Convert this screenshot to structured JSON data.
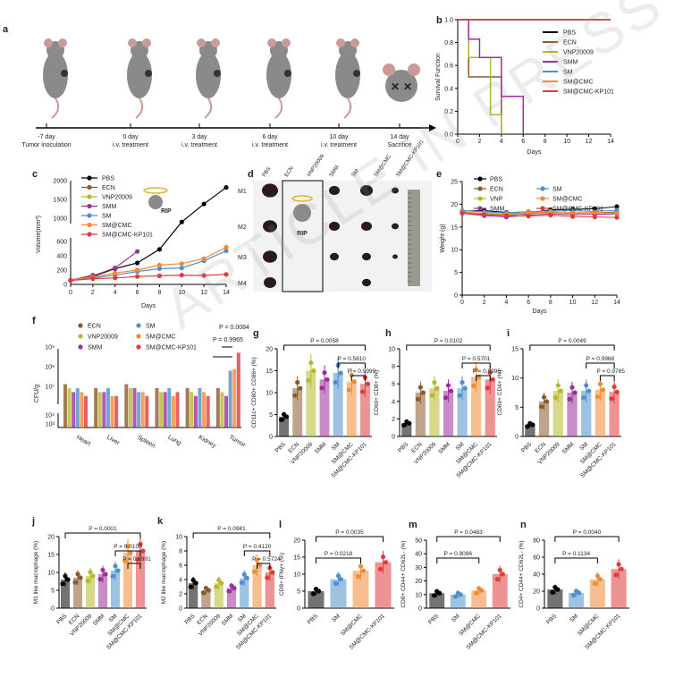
{
  "watermark": "ARTICLE IN PRESS",
  "colors": {
    "PBS": "#000000",
    "ECN": "#8b5a2b",
    "VNP20009": "#b5b82a",
    "SMM": "#9b2f9b",
    "SM": "#4f8fcb",
    "SM@CMC": "#f08a35",
    "SM@CMC-KP101": "#e03a3a"
  },
  "panel_a": {
    "label": "a",
    "timeline": [
      {
        "day": "-7 day",
        "event": "Tumor inoculation"
      },
      {
        "day": "0 day",
        "event": "i.v. treatment"
      },
      {
        "day": "3 day",
        "event": "i.v. treatment"
      },
      {
        "day": "6 day",
        "event": "i.v. treatment"
      },
      {
        "day": "10 day",
        "event": "i.v. treatment"
      },
      {
        "day": "14 day",
        "event": "Sacrifice"
      }
    ]
  },
  "panel_d": {
    "label": "d",
    "groups": [
      "PBS",
      "ECN",
      "VNP20009",
      "SMM",
      "SM",
      "SM@CMC",
      "SM@CMC-KP101"
    ],
    "rows": [
      "M1",
      "M2",
      "M3",
      "M4"
    ],
    "rip": "RIP"
  },
  "chart_data": [
    {
      "id": "b",
      "type": "line",
      "title": "",
      "xlabel": "Days",
      "ylabel": "Survival Function",
      "xlim": [
        0,
        14
      ],
      "ylim": [
        0,
        1.0
      ],
      "xticks": [
        "0",
        "2",
        "4",
        "6",
        "8",
        "10",
        "12",
        "14"
      ],
      "yticks": [
        "0.0",
        "0.2",
        "0.4",
        "0.6",
        "0.8",
        "1.0"
      ],
      "legend": [
        "PBS",
        "ECN",
        "VNP20009",
        "SMM",
        "SM",
        "SM@CMC",
        "SM@CMC-KP101"
      ],
      "series": [
        {
          "name": "PBS",
          "x": [
            0,
            14
          ],
          "y": [
            1,
            1
          ]
        },
        {
          "name": "ECN",
          "x": [
            0,
            1,
            2,
            4
          ],
          "y": [
            1,
            0.5,
            0.5,
            0
          ]
        },
        {
          "name": "VNP20009",
          "x": [
            0,
            1,
            2,
            3,
            4
          ],
          "y": [
            1,
            0.67,
            0.67,
            0.17,
            0
          ]
        },
        {
          "name": "SMM",
          "x": [
            0,
            1,
            2,
            4,
            6
          ],
          "y": [
            1,
            0.83,
            0.67,
            0.33,
            0
          ]
        },
        {
          "name": "SM",
          "x": [
            0,
            14
          ],
          "y": [
            1,
            1
          ]
        },
        {
          "name": "SM@CMC",
          "x": [
            0,
            14
          ],
          "y": [
            1,
            1
          ]
        },
        {
          "name": "SM@CMC-KP101",
          "x": [
            0,
            14
          ],
          "y": [
            1,
            1
          ]
        }
      ]
    },
    {
      "id": "c",
      "type": "line",
      "xlabel": "Days",
      "ylabel": "Volume(mm³)",
      "xticks": [
        "0",
        "2",
        "4",
        "6",
        "8",
        "10",
        "12",
        "14"
      ],
      "yticks_low": [
        "0",
        "200",
        "400",
        "600"
      ],
      "yticks_high": [
        "1000",
        "1500",
        "2000"
      ],
      "legend": [
        "PBS",
        "ECN",
        "VNP20009",
        "SMM",
        "SM",
        "SM@CMC",
        "SM@CMC-KP101"
      ],
      "rip": "RIP",
      "series": [
        {
          "name": "PBS",
          "x": [
            0,
            2,
            4,
            6,
            8,
            10,
            12,
            14
          ],
          "y": [
            60,
            110,
            220,
            300,
            490,
            900,
            1380,
            1820
          ]
        },
        {
          "name": "ECN",
          "x": [
            0,
            2
          ],
          "y": [
            55,
            130
          ]
        },
        {
          "name": "VNP20009",
          "x": [
            0,
            2
          ],
          "y": [
            55,
            120
          ]
        },
        {
          "name": "SMM",
          "x": [
            0,
            2,
            4,
            6
          ],
          "y": [
            60,
            120,
            230,
            460
          ]
        },
        {
          "name": "SM",
          "x": [
            0,
            2,
            4,
            6,
            8,
            10,
            12,
            14
          ],
          "y": [
            60,
            90,
            130,
            180,
            220,
            230,
            330,
            470
          ]
        },
        {
          "name": "SM@CMC",
          "x": [
            0,
            2,
            4,
            6,
            8,
            10,
            12,
            14
          ],
          "y": [
            60,
            100,
            160,
            200,
            270,
            290,
            360,
            520
          ]
        },
        {
          "name": "SM@CMC-KP101",
          "x": [
            0,
            2,
            4,
            6,
            8,
            10,
            12,
            14
          ],
          "y": [
            55,
            80,
            90,
            110,
            120,
            130,
            125,
            140
          ]
        }
      ]
    },
    {
      "id": "e",
      "type": "line",
      "xlabel": "Days",
      "ylabel": "Weight (g)",
      "xlim": [
        0,
        14
      ],
      "ylim": [
        0,
        25
      ],
      "xticks": [
        "0",
        "2",
        "4",
        "6",
        "8",
        "10",
        "12",
        "14"
      ],
      "yticks": [
        "0",
        "5",
        "10",
        "15",
        "20",
        "25"
      ],
      "legend": [
        "PBS",
        "ECN",
        "VNP",
        "SMM",
        "SM",
        "SM@CMC",
        "SM@CMC-KP101"
      ],
      "series": [
        {
          "name": "PBS",
          "x": [
            0,
            2,
            4,
            6,
            8,
            10,
            12,
            14
          ],
          "y": [
            18.5,
            18.6,
            18.2,
            18.0,
            18.8,
            18.9,
            19.0,
            19.5
          ]
        },
        {
          "name": "ECN",
          "x": [
            0,
            2,
            4,
            6,
            8,
            10,
            12,
            14
          ],
          "y": [
            18.0,
            17.8,
            17.6,
            17.9,
            18.2,
            18.0,
            18.1,
            18.3
          ]
        },
        {
          "name": "VNP",
          "x": [
            0,
            2,
            4,
            6,
            8,
            10,
            12,
            14
          ],
          "y": [
            18.2,
            18.0,
            17.8,
            18.1,
            18.0,
            18.2,
            18.0,
            18.1
          ]
        },
        {
          "name": "SMM",
          "x": [
            0,
            2,
            4,
            6,
            8,
            10,
            12,
            14
          ],
          "y": [
            18.0,
            17.5,
            17.2,
            17.6,
            17.9,
            17.7,
            17.8,
            17.9
          ]
        },
        {
          "name": "SM",
          "x": [
            0,
            2,
            4,
            6,
            8,
            10,
            12,
            14
          ],
          "y": [
            18.6,
            18.3,
            18.1,
            18.4,
            18.5,
            18.6,
            18.4,
            18.7
          ]
        },
        {
          "name": "SM@CMC",
          "x": [
            0,
            2,
            4,
            6,
            8,
            10,
            12,
            14
          ],
          "y": [
            18.3,
            18.0,
            17.9,
            18.2,
            18.3,
            18.1,
            18.2,
            18.0
          ]
        },
        {
          "name": "SM@CMC-KP101",
          "x": [
            0,
            2,
            4,
            6,
            8,
            10,
            12,
            14
          ],
          "y": [
            18.1,
            17.7,
            17.5,
            17.4,
            17.6,
            17.3,
            17.2,
            17.1
          ]
        }
      ]
    },
    {
      "id": "f",
      "type": "bar",
      "ylabel": "CFU/g",
      "categories": [
        "Heart",
        "Liver",
        "Spleen",
        "Lung",
        "Kidney",
        "Tumor"
      ],
      "yticks_low": [
        "10²",
        "10⁴"
      ],
      "yticks_high": [
        "10⁷",
        "10⁸",
        "10⁹"
      ],
      "legend": [
        "ECN",
        "VNP20009",
        "SMM",
        "SM",
        "SM@CMC",
        "SM@CMC-KP101"
      ],
      "annotations": [
        "P = 0.0084",
        "P = 0.9965"
      ],
      "series": [
        {
          "name": "ECN",
          "values": [
            0.55,
            0.5,
            0.55,
            0.5,
            0.5,
            0.5
          ]
        },
        {
          "name": "VNP20009",
          "values": [
            0.5,
            0.45,
            0.5,
            0.45,
            0.45,
            0.45
          ]
        },
        {
          "name": "SMM",
          "values": [
            0.45,
            0.45,
            0.5,
            0.45,
            0.4,
            0.4
          ]
        },
        {
          "name": "SM",
          "values": [
            0.5,
            0.5,
            0.45,
            0.5,
            0.5,
            0.72
          ]
        },
        {
          "name": "SM@CMC",
          "values": [
            0.45,
            0.4,
            0.45,
            0.4,
            0.45,
            0.74
          ]
        },
        {
          "name": "SM@CMC-KP101",
          "values": [
            0.4,
            0.4,
            0.4,
            0.45,
            0.4,
            0.95
          ]
        }
      ]
    },
    {
      "id": "g",
      "type": "bar",
      "ylabel": "CD11c+ CD80+ CD86+ (%)",
      "categories": [
        "PBS",
        "ECN",
        "VNP20009",
        "SMM",
        "SM",
        "SM@CMC",
        "SM@CMC-KP101"
      ],
      "ylim": [
        0,
        20
      ],
      "yticks": [
        "0",
        "5",
        "10",
        "15",
        "20"
      ],
      "values": [
        4.5,
        11.0,
        15.0,
        13.0,
        14.5,
        12.5,
        12.0
      ],
      "annotations": [
        "P = 0.0058",
        "P = 0.5810",
        "P = 0.9999"
      ]
    },
    {
      "id": "h",
      "type": "bar",
      "ylabel": "CD69+ CD8+ (%)",
      "categories": [
        "PBS",
        "ECN",
        "VNP20009",
        "SMM",
        "SM",
        "SM@CMC",
        "SM@CMC-KP101"
      ],
      "ylim": [
        0,
        10
      ],
      "yticks": [
        "0",
        "2",
        "4",
        "6",
        "8",
        "10"
      ],
      "values": [
        1.5,
        5.0,
        5.5,
        5.2,
        5.5,
        6.8,
        6.5
      ],
      "annotations": [
        "P = 0.0102",
        "P = 0.5701",
        "P = 0.9996"
      ]
    },
    {
      "id": "i",
      "type": "bar",
      "ylabel": "CD69+ CD4+ (%)",
      "categories": [
        "PBS",
        "ECN",
        "VNP20009",
        "SMM",
        "SM",
        "SM@CMC",
        "SM@CMC-KP101"
      ],
      "ylim": [
        0,
        15
      ],
      "yticks": [
        "0",
        "5",
        "10",
        "15"
      ],
      "values": [
        2.0,
        6.0,
        7.8,
        7.5,
        7.8,
        8.0,
        7.6
      ],
      "annotations": [
        "P = 0.0049",
        "P = 0.9968",
        "P = 0.9785"
      ]
    },
    {
      "id": "j",
      "type": "bar",
      "ylabel": "M1 like macrophage (%)",
      "categories": [
        "PBS",
        "ECN",
        "VNP20009",
        "SMM",
        "SM",
        "SM@CMC",
        "SM@CMC-KP101"
      ],
      "ylim": [
        0,
        20
      ],
      "yticks": [
        "0",
        "5",
        "10",
        "15",
        "20"
      ],
      "values": [
        8.0,
        8.5,
        9.0,
        9.5,
        10.5,
        15.5,
        16.0
      ],
      "annotations": [
        "P = 0.0001",
        "P = 0.0100",
        "P = 0.9991"
      ]
    },
    {
      "id": "k",
      "type": "bar",
      "ylabel": "M2 like macrophage (%)",
      "categories": [
        "PBS",
        "ECN",
        "VNP20009",
        "SMM",
        "SM",
        "SM@CMC",
        "SM@CMC-KP101"
      ],
      "ylim": [
        0,
        10
      ],
      "yticks": [
        "0",
        "2",
        "4",
        "6",
        "8",
        "10"
      ],
      "values": [
        3.5,
        2.5,
        3.5,
        2.8,
        4.2,
        6.0,
        5.0
      ],
      "annotations": [
        "P = 0.0981",
        "P = 0.4120",
        "P = 0.5724"
      ]
    },
    {
      "id": "l",
      "type": "bar",
      "ylabel": "CD8+ IFNγ+ (%)",
      "categories": [
        "PBS",
        "SM",
        "SM@CMC",
        "SM@CMC-KP101"
      ],
      "ylim": [
        0,
        20
      ],
      "yticks": [
        "0",
        "5",
        "10",
        "15",
        "20"
      ],
      "values": [
        5.0,
        8.5,
        11.0,
        13.5
      ],
      "annotations": [
        "P = 0.0035",
        "P = 0.0218"
      ]
    },
    {
      "id": "m",
      "type": "bar",
      "ylabel": "CD8+ CD44+ CD62L- (%)",
      "categories": [
        "PBS",
        "SM",
        "SM@CMC",
        "SM@CMC-KP101"
      ],
      "ylim": [
        0,
        50
      ],
      "yticks": [
        "0",
        "10",
        "20",
        "30",
        "40",
        "50"
      ],
      "values": [
        11.0,
        10.0,
        13.0,
        25.0
      ],
      "annotations": [
        "P = 0.0483",
        "P = 0.9096"
      ]
    },
    {
      "id": "n",
      "type": "bar",
      "ylabel": "CD4+ CD44+ CD62L- (%)",
      "categories": [
        "PBS",
        "SM",
        "SM@CMC",
        "SM@CMC-KP101"
      ],
      "ylim": [
        0,
        80
      ],
      "yticks": [
        "0",
        "20",
        "40",
        "60",
        "80"
      ],
      "values": [
        22.0,
        18.0,
        34.0,
        46.0
      ],
      "annotations": [
        "P = 0.0040",
        "P = 0.1134"
      ]
    }
  ]
}
